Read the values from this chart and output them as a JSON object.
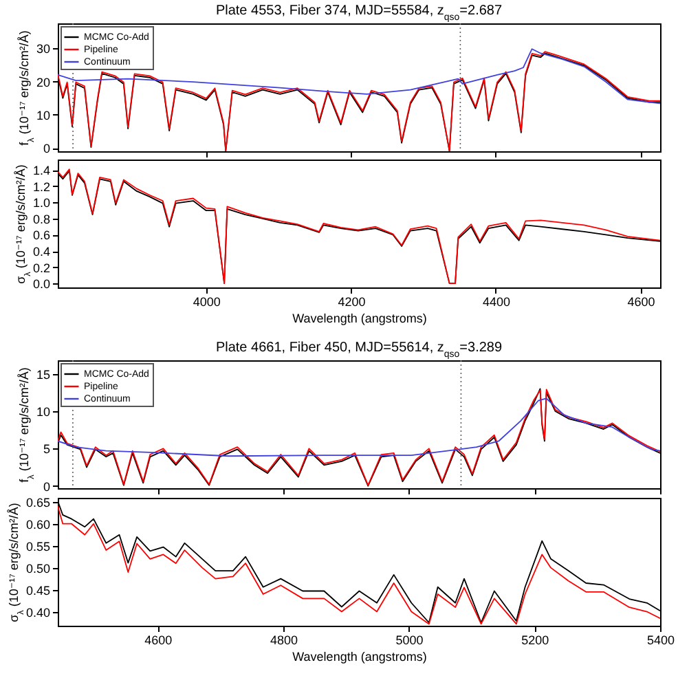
{
  "chart_data": [
    {
      "type": "line",
      "title": "Plate 4553, Fiber 374, MJD=55584, z$_{qso}$=2.687",
      "ylabel": "f$_{λ}$ (10⁻¹⁷ erg/s/cm²/Å)",
      "xlim": [
        3795,
        4627
      ],
      "xticks": [
        4000,
        4200,
        4400,
        4600
      ],
      "ylim": [
        -1,
        37.5
      ],
      "yticks": [
        0,
        10,
        20,
        30
      ],
      "tick_labels": "y",
      "legend": "top left",
      "x": [
        3795,
        3802,
        3808,
        3815,
        3820,
        3832,
        3841,
        3850,
        3856,
        3874,
        3886,
        3892,
        3901,
        3922,
        3940,
        3949,
        3958,
        3982,
        4000,
        4012,
        4024,
        4027,
        4036,
        4054,
        4078,
        4102,
        4126,
        4150,
        4156,
        4168,
        4186,
        4198,
        4216,
        4228,
        4246,
        4264,
        4270,
        4282,
        4294,
        4312,
        4324,
        4336,
        4342,
        4354,
        4372,
        4384,
        4390,
        4402,
        4414,
        4426,
        4435,
        4441,
        4450,
        4462,
        4468,
        4486,
        4522,
        4552,
        4582,
        4612,
        4627
      ],
      "series": [
        {
          "name": "MCMC Co-Add",
          "color": "#000000",
          "values": [
            21.8,
            15,
            19.3,
            6.4,
            19.3,
            18,
            0.2,
            14.4,
            22.4,
            21.2,
            19.3,
            5.8,
            21.8,
            21.2,
            19.3,
            5.2,
            17.5,
            16.2,
            14.4,
            17.5,
            7,
            -0.9,
            16.8,
            15.6,
            17.5,
            16.2,
            17.5,
            13.2,
            7.6,
            16.8,
            7,
            16.8,
            10.7,
            16.8,
            15.6,
            10.7,
            1.5,
            13.2,
            17.5,
            18.1,
            13.2,
            -0.9,
            19.3,
            20.5,
            11.9,
            20.5,
            8.2,
            19.3,
            22.4,
            16.8,
            4.6,
            21.8,
            27.9,
            27.3,
            28.5,
            27.3,
            24.8,
            20.5,
            15,
            13.8,
            13.8
          ]
        },
        {
          "name": "Pipeline",
          "color": "#ff0000",
          "values": [
            22.3,
            15.5,
            19.8,
            6.9,
            19.8,
            18.6,
            0.5,
            14.9,
            22.9,
            21.7,
            19.8,
            6.3,
            22.3,
            21.7,
            19.8,
            5.7,
            18,
            16.7,
            14.9,
            18,
            7.5,
            -0.9,
            17.3,
            16.1,
            18,
            16.7,
            18,
            13.7,
            8.1,
            17.3,
            7.5,
            17.3,
            11.2,
            17.3,
            16.1,
            11.2,
            2,
            13.7,
            18,
            18.6,
            13.7,
            -0.9,
            19.8,
            21,
            12.4,
            21,
            8.7,
            19.8,
            22.9,
            17.3,
            5.1,
            22.3,
            28.4,
            27.8,
            29,
            27.8,
            25.2,
            20.9,
            15.4,
            14.2,
            14.2
          ]
        },
        {
          "name": "Continuum",
          "color": "#4040e0",
          "x": [
            3795,
            3820,
            3892,
            3982,
            4102,
            4162,
            4222,
            4282,
            4348,
            4354,
            4402,
            4426,
            4438,
            4450,
            4462,
            4492,
            4522,
            4552,
            4582,
            4612,
            4627
          ],
          "values": [
            22,
            20.3,
            20.8,
            19.9,
            18.1,
            17.1,
            16.2,
            17.5,
            20.8,
            19.3,
            22,
            23.2,
            24.2,
            29.8,
            28.5,
            26.7,
            24.5,
            19.9,
            14.6,
            13.8,
            13.4
          ]
        }
      ],
      "ref_lines": [
        {
          "axis": "x",
          "value": 3816,
          "color": "#606060",
          "line_style": "dotted"
        },
        {
          "axis": "x",
          "value": 4351,
          "color": "#606060",
          "line_style": "dotted"
        }
      ]
    },
    {
      "type": "line",
      "xlabel": "Wavelength (angstroms)",
      "ylabel": "σ$_{λ}$ (10⁻¹⁷ erg/s/cm²/Å)",
      "xlim": [
        3795,
        4627
      ],
      "xticks": [
        4000,
        4200,
        4400,
        4600
      ],
      "ylim": [
        -0.05,
        1.53
      ],
      "yticks": [
        {
          "value": 0,
          "label": "0.0"
        },
        0.2,
        0.4,
        0.6,
        0.8,
        {
          "value": 1,
          "label": "1.0"
        },
        1.2,
        1.4
      ],
      "x": [
        3795,
        3802,
        3811,
        3815,
        3823,
        3832,
        3843,
        3853,
        3868,
        3875,
        3886,
        3904,
        3922,
        3940,
        3949,
        3958,
        3982,
        4000,
        4012,
        4025,
        4029,
        4054,
        4078,
        4102,
        4126,
        4156,
        4162,
        4186,
        4210,
        4234,
        4258,
        4270,
        4282,
        4306,
        4318,
        4336,
        4344,
        4348,
        4366,
        4378,
        4390,
        4414,
        4432,
        4441,
        4462,
        4492,
        4522,
        4552,
        4582,
        4627
      ],
      "series": [
        {
          "color": "#000000",
          "values": [
            1.36,
            1.29,
            1.39,
            1.09,
            1.34,
            1.24,
            0.85,
            1.29,
            1.26,
            0.97,
            1.26,
            1.14,
            1.07,
            0.99,
            0.7,
            0.99,
            1.02,
            0.9,
            0.9,
            0,
            0.92,
            0.85,
            0.8,
            0.75,
            0.72,
            0.63,
            0.72,
            0.68,
            0.65,
            0.68,
            0.6,
            0.46,
            0.65,
            0.68,
            0.65,
            0,
            0,
            0.55,
            0.7,
            0.5,
            0.68,
            0.72,
            0.53,
            0.72,
            0.7,
            0.67,
            0.64,
            0.6,
            0.56,
            0.52
          ]
        },
        {
          "color": "#ff0000",
          "values": [
            1.38,
            1.31,
            1.41,
            1.1,
            1.36,
            1.26,
            0.86,
            1.31,
            1.28,
            0.99,
            1.28,
            1.17,
            1.09,
            1.02,
            0.72,
            1.02,
            1.05,
            0.93,
            0.92,
            0,
            0.95,
            0.87,
            0.81,
            0.77,
            0.73,
            0.64,
            0.74,
            0.69,
            0.66,
            0.7,
            0.61,
            0.47,
            0.67,
            0.71,
            0.68,
            0,
            0,
            0.57,
            0.73,
            0.52,
            0.71,
            0.75,
            0.55,
            0.77,
            0.78,
            0.75,
            0.72,
            0.66,
            0.58,
            0.53
          ]
        }
      ]
    },
    {
      "type": "line",
      "title": "Plate 4661, Fiber 450, MJD=55614, z$_{qso}$=3.289",
      "ylabel": "f$_{λ}$ (10⁻¹⁷ erg/s/cm²/Å)",
      "xlim": [
        4441,
        5400
      ],
      "xticks": [
        4600,
        4800,
        5000,
        5200,
        5400
      ],
      "ylim": [
        -0.3,
        16.8
      ],
      "yticks": [
        0,
        5,
        10,
        15
      ],
      "tick_labels": "y",
      "legend": "top left",
      "x": [
        4441,
        4446,
        4456,
        4477,
        4487,
        4501,
        4518,
        4529,
        4546,
        4560,
        4577,
        4588,
        4609,
        4629,
        4643,
        4664,
        4682,
        4699,
        4727,
        4754,
        4775,
        4796,
        4824,
        4841,
        4865,
        4893,
        4914,
        4935,
        4956,
        4976,
        4990,
        5011,
        5032,
        5053,
        5074,
        5088,
        5101,
        5115,
        5136,
        5150,
        5171,
        5185,
        5199,
        5209,
        5212,
        5216,
        5219,
        5233,
        5254,
        5282,
        5310,
        5324,
        5351,
        5379,
        5400
      ],
      "series": [
        {
          "name": "MCMC Co-Add",
          "color": "#000000",
          "values": [
            5.7,
            6.8,
            5.5,
            4.9,
            2.5,
            4.9,
            3.9,
            4.4,
            0.1,
            4.4,
            0.4,
            3.9,
            4.7,
            2.8,
            4.1,
            2.2,
            0.1,
            3.9,
            4.9,
            2.8,
            1.7,
            3.9,
            1.2,
            4.7,
            2.8,
            3.3,
            4.1,
            0,
            3.9,
            4.1,
            0.6,
            3.3,
            4.7,
            0.4,
            4.9,
            3.9,
            1.4,
            4.9,
            6.5,
            3.3,
            5.5,
            8.7,
            11.1,
            13,
            8.2,
            6,
            12.5,
            10,
            9,
            8.4,
            7.6,
            8.2,
            6.5,
            5.2,
            4.4
          ]
        },
        {
          "name": "Pipeline",
          "color": "#ff0000",
          "values": [
            6,
            7.2,
            5.7,
            5.1,
            2.7,
            5.2,
            4.1,
            4.7,
            0.2,
            4.7,
            0.6,
            4.2,
            5,
            3,
            4.4,
            2.4,
            0.2,
            4.2,
            5.2,
            3,
            1.9,
            4.2,
            1.4,
            5,
            3,
            3.5,
            4.4,
            0.1,
            4.2,
            4.4,
            0.8,
            3.5,
            5,
            0.6,
            5.2,
            4.2,
            1.6,
            5.2,
            6.8,
            3.5,
            5.8,
            9,
            11.5,
            12.8,
            8.5,
            6.2,
            12.9,
            10.2,
            9.2,
            8.6,
            7.8,
            8.4,
            6.7,
            5.4,
            4.6
          ]
        },
        {
          "name": "Continuum",
          "color": "#4040e0",
          "x": [
            4441,
            4470,
            4518,
            4588,
            4713,
            4865,
            5004,
            5081,
            5108,
            5143,
            5178,
            5206,
            5219,
            5247,
            5282,
            5323,
            5351,
            5386,
            5400
          ],
          "values": [
            6,
            5.2,
            4.7,
            4.5,
            4,
            4.1,
            4.1,
            4.9,
            5.2,
            6,
            8.7,
            11.4,
            11.7,
            9.5,
            8.4,
            7.9,
            6.5,
            4.9,
            4.7
          ]
        }
      ],
      "ref_lines": [
        {
          "axis": "x",
          "value": 4465,
          "color": "#606060",
          "line_style": "dotted"
        },
        {
          "axis": "x",
          "value": 5083,
          "color": "#606060",
          "line_style": "dotted"
        }
      ]
    },
    {
      "type": "line",
      "xlabel": "Wavelength (angstroms)",
      "ylabel": "σ$_{λ}$ (10⁻¹⁷ erg/s/cm²/Å)",
      "xlim": [
        4441,
        5400
      ],
      "xticks": [
        4600,
        4800,
        5000,
        5200,
        5400
      ],
      "ylim": [
        0.368,
        0.659
      ],
      "yticks": [
        {
          "value": 0.4,
          "label": "0.40"
        },
        0.45,
        {
          "value": 0.5,
          "label": "0.50"
        },
        0.55,
        {
          "value": 0.6,
          "label": "0.60"
        },
        0.65
      ],
      "x": [
        4441,
        4449,
        4463,
        4484,
        4498,
        4518,
        4539,
        4553,
        4567,
        4588,
        4609,
        4629,
        4643,
        4671,
        4692,
        4720,
        4740,
        4768,
        4796,
        4831,
        4865,
        4893,
        4921,
        4949,
        4976,
        5004,
        5032,
        5046,
        5074,
        5088,
        5115,
        5136,
        5171,
        5185,
        5212,
        5226,
        5254,
        5282,
        5310,
        5351,
        5379,
        5400
      ],
      "series": [
        {
          "color": "#000000",
          "values": [
            0.652,
            0.62,
            0.611,
            0.593,
            0.611,
            0.556,
            0.575,
            0.511,
            0.57,
            0.538,
            0.547,
            0.525,
            0.556,
            0.52,
            0.493,
            0.493,
            0.525,
            0.456,
            0.475,
            0.447,
            0.447,
            0.411,
            0.447,
            0.42,
            0.484,
            0.42,
            0.375,
            0.456,
            0.42,
            0.475,
            0.375,
            0.447,
            0.379,
            0.456,
            0.561,
            0.52,
            0.493,
            0.465,
            0.461,
            0.429,
            0.42,
            0.402
          ]
        },
        {
          "color": "#ff0000",
          "values": [
            0.64,
            0.6,
            0.6,
            0.575,
            0.6,
            0.54,
            0.56,
            0.49,
            0.555,
            0.52,
            0.53,
            0.51,
            0.54,
            0.5,
            0.475,
            0.48,
            0.51,
            0.44,
            0.46,
            0.43,
            0.43,
            0.4,
            0.43,
            0.4,
            0.465,
            0.4,
            0.372,
            0.44,
            0.41,
            0.455,
            0.372,
            0.43,
            0.372,
            0.44,
            0.53,
            0.5,
            0.47,
            0.445,
            0.445,
            0.41,
            0.4,
            0.385
          ]
        }
      ]
    }
  ]
}
